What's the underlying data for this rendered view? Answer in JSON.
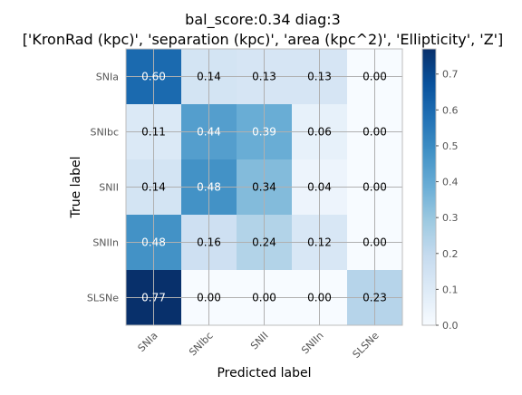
{
  "chart_data": {
    "type": "heatmap",
    "title_line1": "bal_score:0.34 diag:3",
    "title_line2": "['KronRad (kpc)', 'separation (kpc)', 'area (kpc^2)', 'Ellipticity', 'Z']",
    "xlabel": "Predicted label",
    "ylabel": "True label",
    "x_categories": [
      "SNIa",
      "SNIbc",
      "SNII",
      "SNIIn",
      "SLSNe"
    ],
    "y_categories": [
      "SNIa",
      "SNIbc",
      "SNII",
      "SNIIn",
      "SLSNe"
    ],
    "values": [
      [
        0.6,
        0.14,
        0.13,
        0.13,
        0.0
      ],
      [
        0.11,
        0.44,
        0.39,
        0.06,
        0.0
      ],
      [
        0.14,
        0.48,
        0.34,
        0.04,
        0.0
      ],
      [
        0.48,
        0.16,
        0.24,
        0.12,
        0.0
      ],
      [
        0.77,
        0.0,
        0.0,
        0.0,
        0.23
      ]
    ],
    "value_labels": [
      [
        "0.60",
        "0.14",
        "0.13",
        "0.13",
        "0.00"
      ],
      [
        "0.11",
        "0.44",
        "0.39",
        "0.06",
        "0.00"
      ],
      [
        "0.14",
        "0.48",
        "0.34",
        "0.04",
        "0.00"
      ],
      [
        "0.48",
        "0.16",
        "0.24",
        "0.12",
        "0.00"
      ],
      [
        "0.77",
        "0.00",
        "0.00",
        "0.00",
        "0.23"
      ]
    ],
    "colorbar": {
      "range": [
        0,
        0.77
      ],
      "ticks": [
        0.0,
        0.1,
        0.2,
        0.3,
        0.4,
        0.5,
        0.6,
        0.7
      ],
      "tick_labels": [
        "0.0",
        "0.1",
        "0.2",
        "0.3",
        "0.4",
        "0.5",
        "0.6",
        "0.7"
      ],
      "colormap": "Blues"
    },
    "grid": true
  }
}
